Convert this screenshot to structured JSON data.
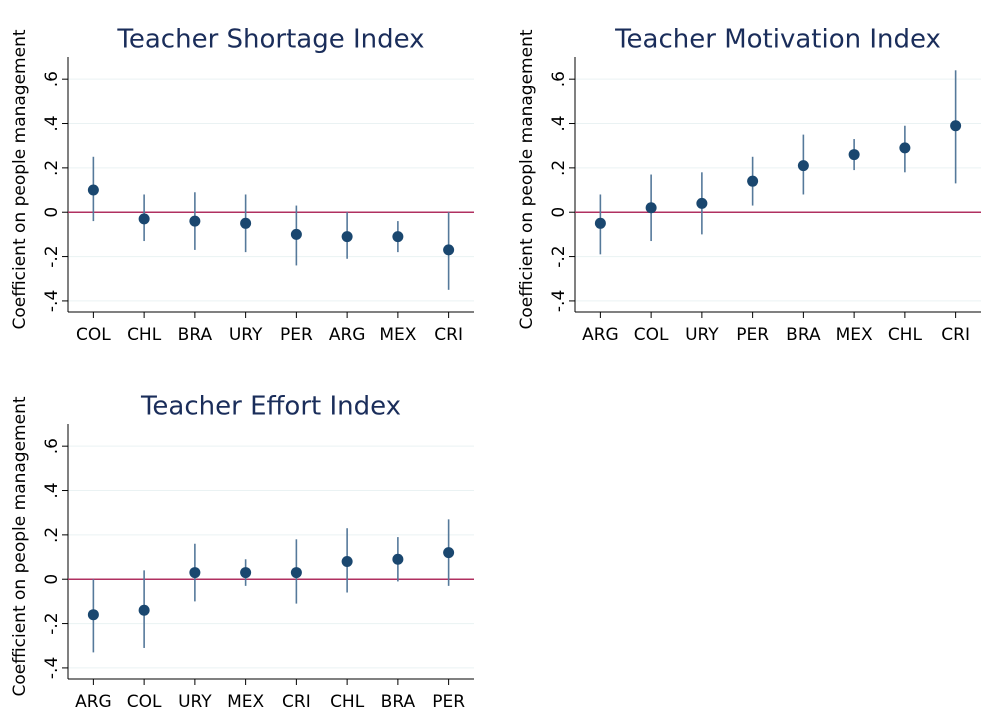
{
  "chart_data": [
    {
      "type": "errorbar",
      "title": "Teacher Shortage Index",
      "y_label": "Coefficient on people management",
      "categories": [
        "COL",
        "CHL",
        "BRA",
        "URY",
        "PER",
        "ARG",
        "MEX",
        "CRI"
      ],
      "values": [
        0.1,
        -0.03,
        -0.04,
        -0.05,
        -0.1,
        -0.11,
        -0.11,
        -0.17
      ],
      "ci_low": [
        -0.04,
        -0.13,
        -0.17,
        -0.18,
        -0.24,
        -0.21,
        -0.18,
        -0.35
      ],
      "ci_high": [
        0.25,
        0.08,
        0.09,
        0.08,
        0.03,
        0.0,
        -0.04,
        0.0
      ],
      "color": "#1a476f",
      "ci_color": "#55799a",
      "hline": 0,
      "hline_color": "#b03060",
      "ylim": [
        -0.45,
        0.7
      ],
      "yticks": [
        {
          "value": -0.4,
          "label": "-.4"
        },
        {
          "value": -0.2,
          "label": "-.2"
        },
        0,
        {
          "value": 0.2,
          "label": ".2"
        },
        {
          "value": 0.4,
          "label": ".4"
        },
        {
          "value": 0.6,
          "label": ".6"
        }
      ],
      "grid": true
    },
    {
      "type": "errorbar",
      "title": "Teacher Motivation Index",
      "y_label": "Coefficient on people management",
      "categories": [
        "ARG",
        "COL",
        "URY",
        "PER",
        "BRA",
        "MEX",
        "CHL",
        "CRI"
      ],
      "values": [
        -0.05,
        0.02,
        0.04,
        0.14,
        0.21,
        0.26,
        0.29,
        0.39
      ],
      "ci_low": [
        -0.19,
        -0.13,
        -0.1,
        0.03,
        0.08,
        0.19,
        0.18,
        0.13
      ],
      "ci_high": [
        0.08,
        0.17,
        0.18,
        0.25,
        0.35,
        0.33,
        0.39,
        0.64
      ],
      "color": "#1a476f",
      "ci_color": "#55799a",
      "hline": 0,
      "hline_color": "#b03060",
      "ylim": [
        -0.45,
        0.7
      ],
      "yticks": [
        {
          "value": -0.4,
          "label": "-.4"
        },
        {
          "value": -0.2,
          "label": "-.2"
        },
        0,
        {
          "value": 0.2,
          "label": ".2"
        },
        {
          "value": 0.4,
          "label": ".4"
        },
        {
          "value": 0.6,
          "label": ".6"
        }
      ],
      "grid": true
    },
    {
      "type": "errorbar",
      "title": "Teacher Effort Index",
      "y_label": "Coefficient on people management",
      "categories": [
        "ARG",
        "COL",
        "URY",
        "MEX",
        "CRI",
        "CHL",
        "BRA",
        "PER"
      ],
      "values": [
        -0.16,
        -0.14,
        0.03,
        0.03,
        0.03,
        0.08,
        0.09,
        0.12
      ],
      "ci_low": [
        -0.33,
        -0.31,
        -0.1,
        -0.03,
        -0.11,
        -0.06,
        -0.01,
        -0.03
      ],
      "ci_high": [
        0.0,
        0.04,
        0.16,
        0.09,
        0.18,
        0.23,
        0.19,
        0.27
      ],
      "color": "#1a476f",
      "ci_color": "#55799a",
      "hline": 0,
      "hline_color": "#b03060",
      "ylim": [
        -0.45,
        0.7
      ],
      "yticks": [
        {
          "value": -0.4,
          "label": "-.4"
        },
        {
          "value": -0.2,
          "label": "-.2"
        },
        0,
        {
          "value": 0.2,
          "label": ".2"
        },
        {
          "value": 0.4,
          "label": ".4"
        },
        {
          "value": 0.6,
          "label": ".6"
        }
      ],
      "grid": true
    }
  ]
}
